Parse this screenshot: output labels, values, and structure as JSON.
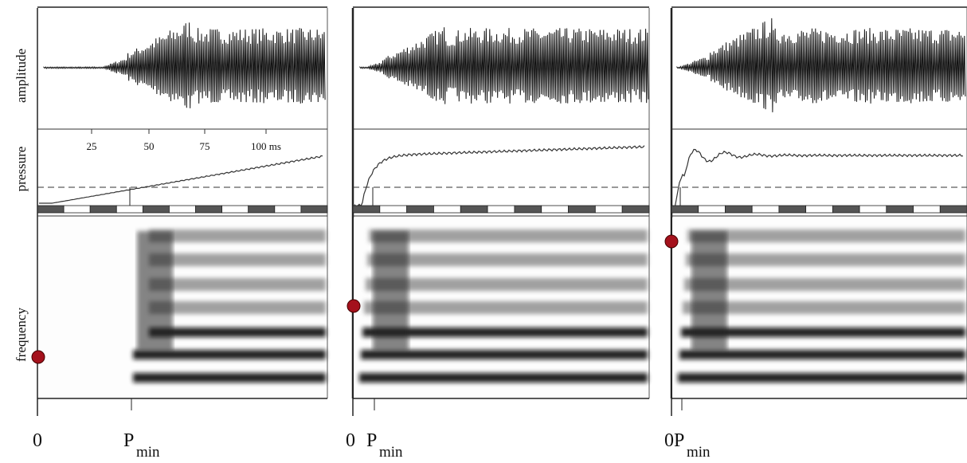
{
  "axis_labels": {
    "amplitude": "amplitude",
    "pressure": "pressure",
    "frequency": "frequency"
  },
  "time_ticks": [
    "25",
    "50",
    "75",
    "100 ms"
  ],
  "panels": [
    {
      "zero": "0",
      "pmin": "P",
      "pmin_sub": "min"
    },
    {
      "zero": "0",
      "pmin": "P",
      "pmin_sub": "min"
    },
    {
      "zero": "0",
      "pmin": "P",
      "pmin_sub": "min"
    }
  ]
}
